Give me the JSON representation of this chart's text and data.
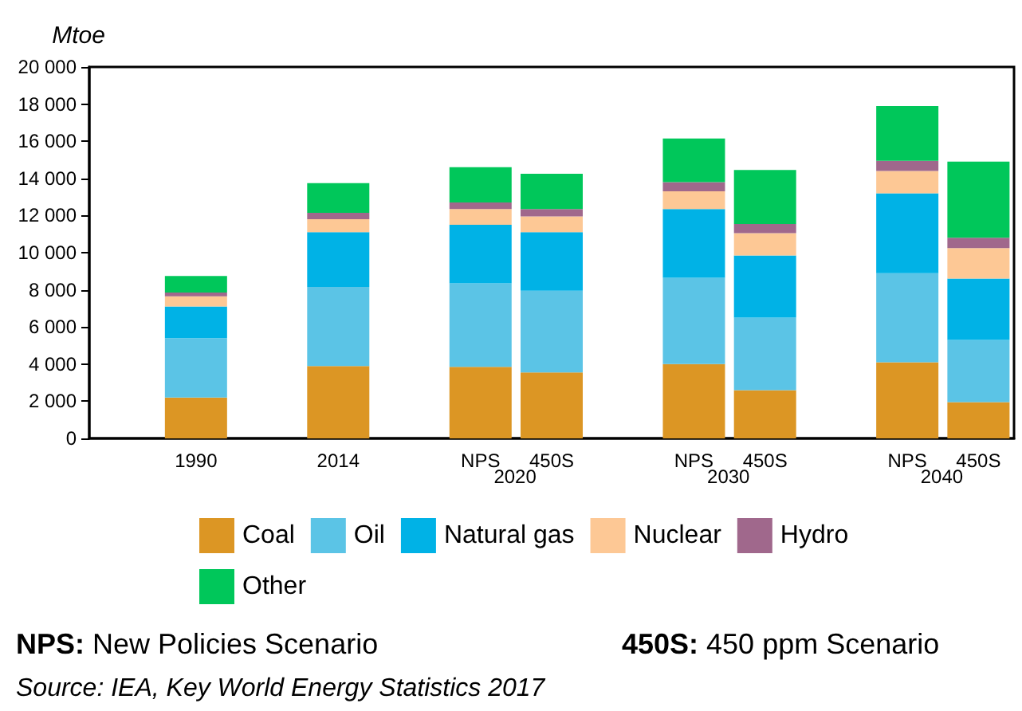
{
  "chart_data": {
    "type": "bar",
    "stacked": true,
    "ylabel": "Mtoe",
    "categories": [
      "1990",
      "2014",
      "NPS",
      "450S",
      "NPS",
      "450S",
      "NPS",
      "450S"
    ],
    "series": [
      {
        "name": "Coal",
        "color": "#dc9624",
        "values": [
          2200,
          3900,
          3850,
          3550,
          4000,
          2600,
          4100,
          1950
        ]
      },
      {
        "name": "Oil",
        "color": "#5bc4e6",
        "values": [
          3200,
          4250,
          4500,
          4400,
          4650,
          3900,
          4800,
          3350
        ]
      },
      {
        "name": "Natural gas",
        "color": "#00b2e6",
        "values": [
          1700,
          2950,
          3150,
          3150,
          3700,
          3350,
          4300,
          3300
        ]
      },
      {
        "name": "Nuclear",
        "color": "#fdc895",
        "values": [
          550,
          700,
          850,
          850,
          950,
          1200,
          1200,
          1650
        ]
      },
      {
        "name": "Hydro",
        "color": "#a0688c",
        "values": [
          200,
          350,
          350,
          400,
          500,
          500,
          550,
          550
        ]
      },
      {
        "name": "Other",
        "color": "#00c75a",
        "values": [
          900,
          1600,
          1900,
          1900,
          2350,
          2900,
          2950,
          4100
        ]
      }
    ],
    "ylim": [
      0,
      20000
    ],
    "yticks": [
      0,
      {
        "value": 2000,
        "label": "2 000"
      },
      {
        "value": 4000,
        "label": "4 000"
      },
      {
        "value": 6000,
        "label": "6 000"
      },
      {
        "value": 8000,
        "label": "8 000"
      },
      {
        "value": 10000,
        "label": "10 000"
      },
      {
        "value": 12000,
        "label": "12 000"
      },
      {
        "value": 14000,
        "label": "14 000"
      },
      {
        "value": 16000,
        "label": "16 000"
      },
      {
        "value": 18000,
        "label": "18 000"
      },
      {
        "value": 20000,
        "label": "20 000"
      }
    ],
    "grid": false,
    "legend": "bottom",
    "annotations": [
      "2020",
      "2030",
      "2040",
      "NPS: New Policies Scenario",
      "450S: 450 ppm Scenario",
      "Source: IEA, Key World Energy Statistics 2017"
    ]
  }
}
